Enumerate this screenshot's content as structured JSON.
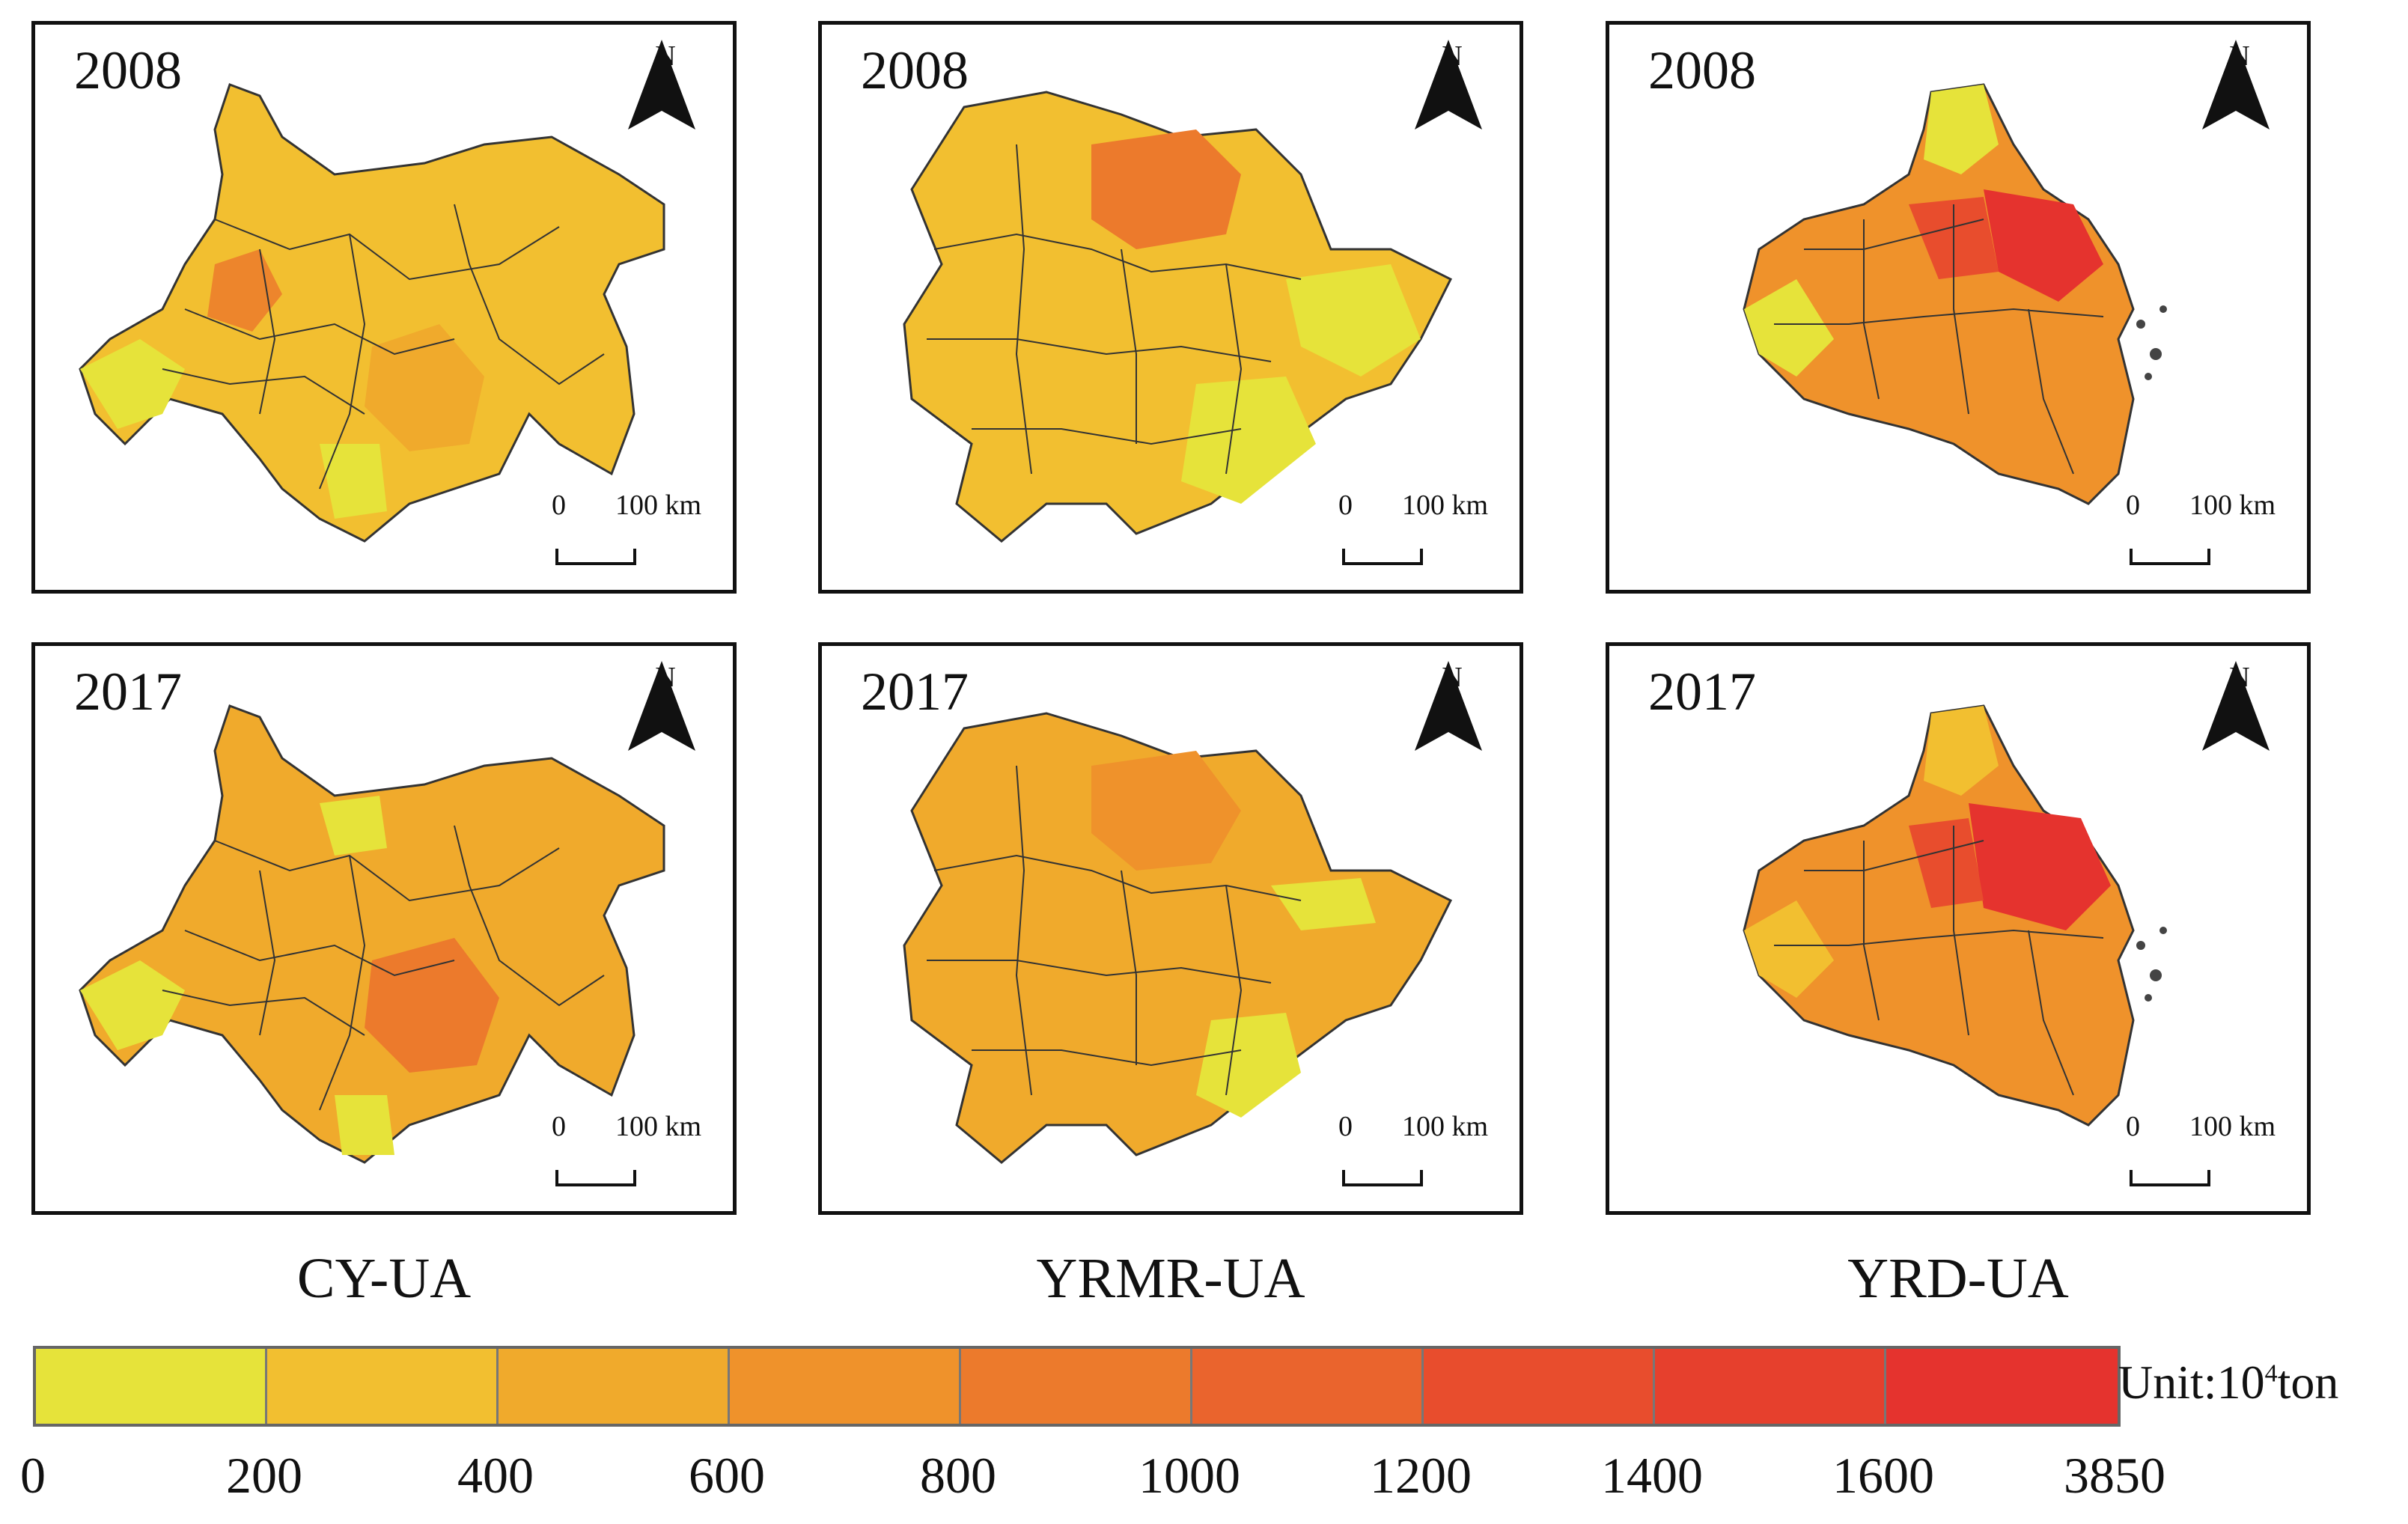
{
  "panels": [
    {
      "region": "CY-UA",
      "year": "2008",
      "scale": {
        "zero": "0",
        "dist": "100 km"
      },
      "north": "N"
    },
    {
      "region": "YRMR-UA",
      "year": "2008",
      "scale": {
        "zero": "0",
        "dist": "100 km"
      },
      "north": "N"
    },
    {
      "region": "YRD-UA",
      "year": "2008",
      "scale": {
        "zero": "0",
        "dist": "100 km"
      },
      "north": "N"
    },
    {
      "region": "CY-UA",
      "year": "2017",
      "scale": {
        "zero": "0",
        "dist": "100 km"
      },
      "north": "N"
    },
    {
      "region": "YRMR-UA",
      "year": "2017",
      "scale": {
        "zero": "0",
        "dist": "100 km"
      },
      "north": "N"
    },
    {
      "region": "YRD-UA",
      "year": "2017",
      "scale": {
        "zero": "0",
        "dist": "100 km"
      },
      "north": "N"
    }
  ],
  "region_labels": [
    "CY-UA",
    "YRMR-UA",
    "YRD-UA"
  ],
  "legend": {
    "unit_prefix": "Unit:10",
    "unit_exp": "4",
    "unit_suffix": "ton",
    "ticks": [
      "0",
      "200",
      "400",
      "600",
      "800",
      "1000",
      "1200",
      "1400",
      "1600",
      "3850"
    ],
    "colors": [
      "#e6e33a",
      "#f2bf30",
      "#f0aa2c",
      "#ef922b",
      "#ec7a2c",
      "#ea642d",
      "#e84d2d",
      "#e6402d",
      "#e5332e"
    ]
  }
}
